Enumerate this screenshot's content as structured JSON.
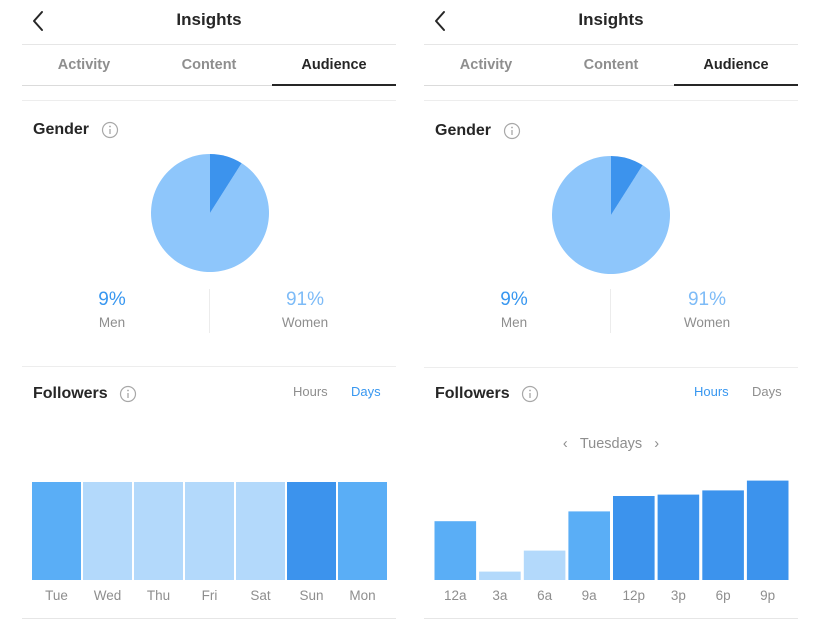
{
  "colors": {
    "light": "#8ec6fb",
    "lighter": "#b3d9fb",
    "mid": "#5aaef6",
    "dark": "#3c93ed",
    "accent": "#3897f0",
    "text": "#262626",
    "muted": "#8e8e8e"
  },
  "left": {
    "header": {
      "title": "Insights",
      "back_icon": "chevron-left-icon"
    },
    "tabs": [
      "Activity",
      "Content",
      "Audience"
    ],
    "active_tab": "Audience",
    "gender": {
      "title": "Gender",
      "men_pct": "9%",
      "men_label": "Men",
      "women_pct": "91%",
      "women_label": "Women"
    },
    "followers": {
      "title": "Followers",
      "toggle_hours": "Hours",
      "toggle_days": "Days",
      "active_toggle": "Days"
    },
    "chart_data": {
      "type": "bar",
      "categories": [
        "Tue",
        "Wed",
        "Thu",
        "Fri",
        "Sat",
        "Sun",
        "Mon"
      ],
      "values": [
        70,
        70,
        70,
        70,
        70,
        70,
        70
      ],
      "shades": [
        "mid",
        "lighter",
        "lighter",
        "lighter",
        "lighter",
        "dark",
        "mid"
      ],
      "ylim": [
        0,
        100
      ]
    }
  },
  "right": {
    "header": {
      "title": "Insights",
      "back_icon": "chevron-left-icon"
    },
    "tabs": [
      "Activity",
      "Content",
      "Audience"
    ],
    "active_tab": "Audience",
    "gender": {
      "title": "Gender",
      "men_pct": "9%",
      "men_label": "Men",
      "women_pct": "91%",
      "women_label": "Women"
    },
    "followers": {
      "title": "Followers",
      "toggle_hours": "Hours",
      "toggle_days": "Days",
      "active_toggle": "Hours",
      "day": "Tuesdays",
      "prev_icon": "chevron-left-icon",
      "next_icon": "chevron-right-icon"
    },
    "chart_data": {
      "type": "bar",
      "categories": [
        "12a",
        "3a",
        "6a",
        "9a",
        "12p",
        "3p",
        "6p",
        "9p"
      ],
      "values": [
        42,
        6,
        21,
        49,
        60,
        61,
        64,
        71
      ],
      "shades": [
        "mid",
        "lighter",
        "lighter",
        "mid",
        "dark",
        "dark",
        "dark",
        "dark"
      ],
      "ylim": [
        0,
        100
      ]
    }
  },
  "gender_chart_data": {
    "type": "pie",
    "labels": [
      "Men",
      "Women"
    ],
    "values": [
      9,
      91
    ]
  }
}
